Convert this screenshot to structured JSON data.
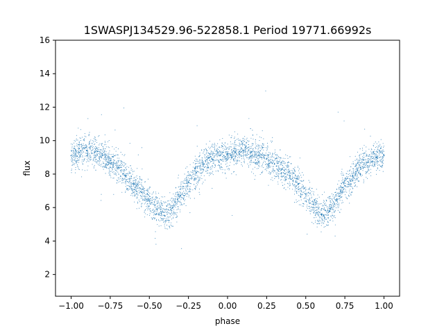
{
  "chart_data": {
    "type": "scatter",
    "title": "1SWASPJ134529.96-522858.1 Period 19771.66992s",
    "xlabel": "phase",
    "ylabel": "flux",
    "xlim": [
      -1.1,
      1.1
    ],
    "ylim": [
      0.7,
      16
    ],
    "xticks": [
      -1.0,
      -0.75,
      -0.5,
      -0.25,
      0.0,
      0.25,
      0.5,
      0.75,
      1.0
    ],
    "xtick_labels": [
      "−1.00",
      "−0.75",
      "−0.50",
      "−0.25",
      "0.00",
      "0.25",
      "0.50",
      "0.75",
      "1.00"
    ],
    "yticks": [
      2,
      4,
      6,
      8,
      10,
      12,
      14,
      16
    ],
    "ytick_labels": [
      "2",
      "4",
      "6",
      "8",
      "10",
      "12",
      "14",
      "16"
    ],
    "grid": false,
    "legend": "none",
    "point_color": "#1f77b4",
    "series": [
      {
        "x": [
          -1.0,
          -0.95,
          -0.9,
          -0.85,
          -0.8,
          -0.75,
          -0.7,
          -0.65,
          -0.6,
          -0.55,
          -0.5,
          -0.45,
          -0.4,
          -0.35,
          -0.3,
          -0.25,
          -0.2,
          -0.15,
          -0.1,
          -0.05,
          0.0,
          0.05,
          0.1,
          0.15,
          0.2,
          0.25,
          0.3,
          0.35,
          0.4,
          0.45,
          0.5,
          0.55,
          0.6,
          0.65,
          0.7,
          0.75,
          0.8,
          0.85,
          0.9,
          0.95,
          1.0
        ],
        "y": [
          9.1,
          9.3,
          9.4,
          9.3,
          9.1,
          8.8,
          8.4,
          7.9,
          7.4,
          6.9,
          6.4,
          5.9,
          5.5,
          6.0,
          6.7,
          7.5,
          8.1,
          8.6,
          8.9,
          9.1,
          9.2,
          9.3,
          9.4,
          9.3,
          9.1,
          8.9,
          8.6,
          8.3,
          7.9,
          7.4,
          6.8,
          6.2,
          5.6,
          5.8,
          6.5,
          7.3,
          7.9,
          8.4,
          8.7,
          9.0,
          9.1
        ]
      }
    ]
  }
}
